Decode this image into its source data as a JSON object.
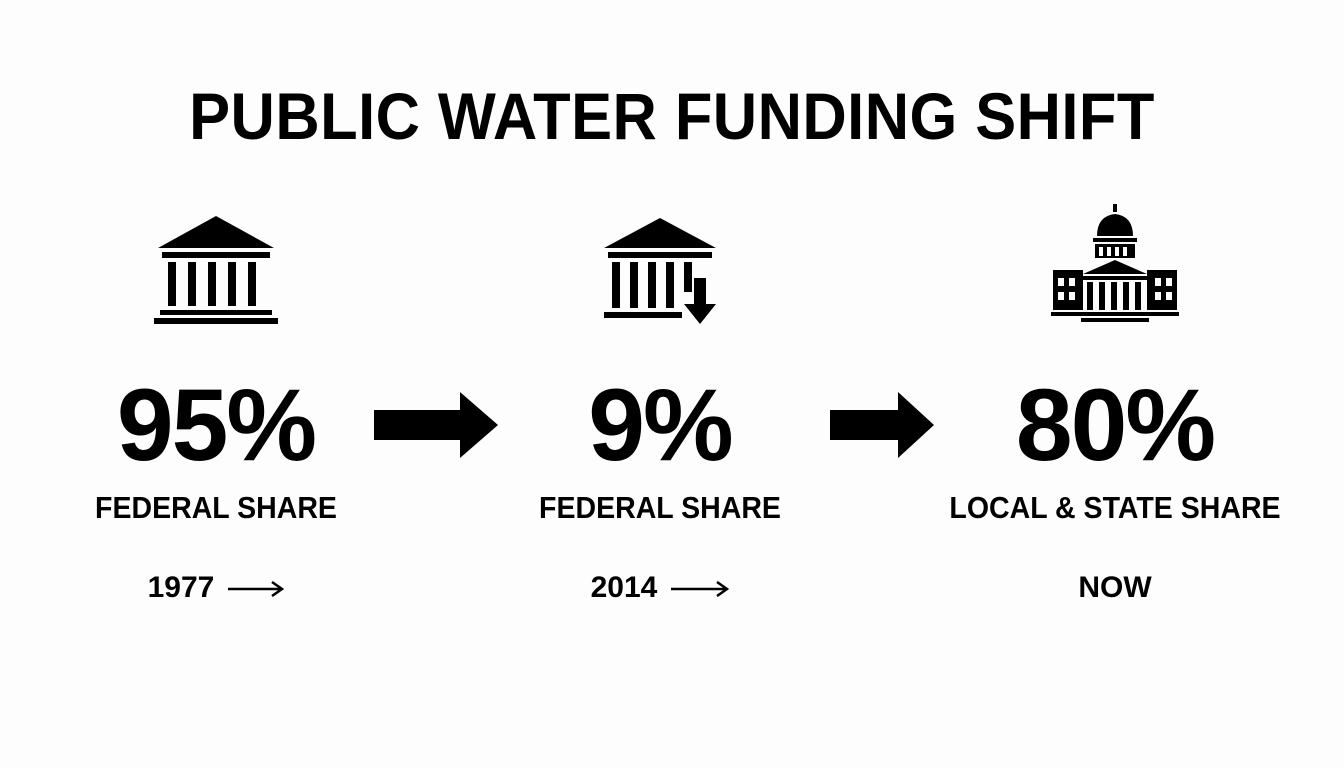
{
  "title": "PUBLIC WATER FUNDING SHIFT",
  "stages": [
    {
      "icon": "federal-building-icon",
      "percent": "95%",
      "label": "FEDERAL SHARE",
      "period": "1977"
    },
    {
      "icon": "federal-building-declining-icon",
      "percent": "9%",
      "label": "FEDERAL SHARE",
      "period": "2014"
    },
    {
      "icon": "state-capitol-icon",
      "percent": "80%",
      "label": "LOCAL & STATE SHARE",
      "period": "NOW"
    }
  ],
  "colors": {
    "ink": "#000000",
    "background": "#fdfdfd"
  }
}
